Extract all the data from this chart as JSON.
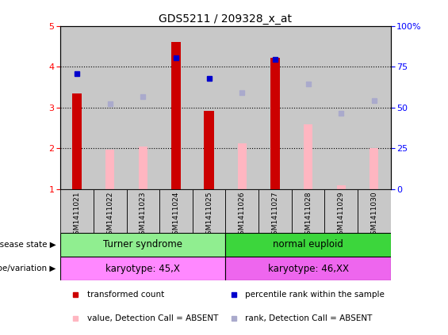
{
  "title": "GDS5211 / 209328_x_at",
  "samples": [
    "GSM1411021",
    "GSM1411022",
    "GSM1411023",
    "GSM1411024",
    "GSM1411025",
    "GSM1411026",
    "GSM1411027",
    "GSM1411028",
    "GSM1411029",
    "GSM1411030"
  ],
  "transformed_count": [
    3.35,
    null,
    null,
    4.62,
    2.93,
    null,
    4.22,
    null,
    null,
    null
  ],
  "percentile_rank": [
    3.83,
    null,
    null,
    4.22,
    3.72,
    null,
    4.18,
    null,
    null,
    null
  ],
  "value_absent": [
    null,
    1.97,
    2.04,
    null,
    null,
    2.12,
    null,
    2.6,
    1.1,
    2.0
  ],
  "rank_absent": [
    null,
    3.1,
    3.28,
    null,
    null,
    3.37,
    null,
    3.58,
    2.86,
    3.18
  ],
  "disease_state_groups": [
    {
      "label": "Turner syndrome",
      "start": 0,
      "end": 5,
      "color": "#90EE90"
    },
    {
      "label": "normal euploid",
      "start": 5,
      "end": 10,
      "color": "#3CD63C"
    }
  ],
  "genotype_groups": [
    {
      "label": "karyotype: 45,X",
      "start": 0,
      "end": 5,
      "color": "#FF88FF"
    },
    {
      "label": "karyotype: 46,XX",
      "start": 5,
      "end": 10,
      "color": "#EE66EE"
    }
  ],
  "ylim_left": [
    1,
    5
  ],
  "ylim_right": [
    0,
    100
  ],
  "yticks_left": [
    1,
    2,
    3,
    4,
    5
  ],
  "yticks_right": [
    0,
    25,
    50,
    75,
    100
  ],
  "bar_width": 0.3,
  "transformed_color": "#CC0000",
  "percentile_color": "#0000CC",
  "value_absent_color": "#FFB6C1",
  "rank_absent_color": "#AAAACC",
  "background_samples": "#C8C8C8",
  "right_axis_color": "#0000FF"
}
